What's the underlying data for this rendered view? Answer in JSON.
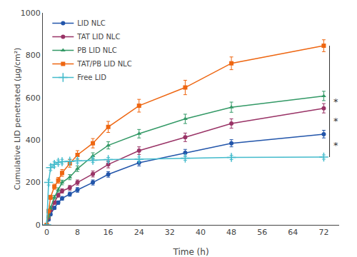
{
  "chart_data": {
    "type": "line",
    "x": [
      0,
      0.5,
      1,
      2,
      3,
      4,
      6,
      8,
      12,
      16,
      24,
      36,
      48,
      72
    ],
    "series": [
      {
        "name": "LID NLC",
        "color": "#2255aa",
        "marker": "circle",
        "line_style": "solid",
        "values": [
          0,
          25,
          50,
          80,
          105,
          125,
          145,
          165,
          200,
          238,
          293,
          340,
          385,
          428
        ],
        "errors": [
          0,
          5,
          6,
          7,
          8,
          9,
          10,
          11,
          12,
          13,
          15,
          16,
          17,
          18
        ]
      },
      {
        "name": "TAT LID NLC",
        "color": "#993366",
        "marker": "circle",
        "line_style": "solid",
        "values": [
          0,
          35,
          70,
          105,
          140,
          160,
          175,
          200,
          240,
          285,
          350,
          413,
          478,
          550
        ],
        "errors": [
          0,
          6,
          7,
          8,
          9,
          10,
          11,
          12,
          14,
          16,
          18,
          20,
          22,
          22
        ]
      },
      {
        "name": "PB LID NLC",
        "color": "#339966",
        "marker": "triangle",
        "line_style": "solid",
        "values": [
          0,
          40,
          80,
          130,
          165,
          200,
          225,
          265,
          325,
          375,
          430,
          500,
          555,
          608
        ],
        "errors": [
          0,
          6,
          8,
          9,
          10,
          11,
          12,
          13,
          15,
          17,
          20,
          22,
          24,
          22
        ]
      },
      {
        "name": "TAT/PB LID NLC",
        "color": "#ee6611",
        "marker": "square",
        "line_style": "solid",
        "values": [
          0,
          65,
          130,
          180,
          210,
          245,
          290,
          330,
          385,
          462,
          562,
          648,
          762,
          845
        ],
        "errors": [
          0,
          8,
          10,
          12,
          14,
          16,
          18,
          20,
          22,
          26,
          30,
          34,
          30,
          28
        ]
      },
      {
        "name": "Free LID",
        "color": "#44bbcc",
        "marker": "plus",
        "line_style": "solid",
        "values": [
          0,
          200,
          270,
          285,
          295,
          298,
          300,
          302,
          305,
          308,
          310,
          315,
          318,
          320
        ],
        "errors": [
          0,
          12,
          12,
          12,
          11,
          11,
          10,
          10,
          10,
          10,
          10,
          10,
          10,
          10
        ]
      }
    ],
    "xlabel": "Time (h)",
    "ylabel": "Cumulative LID penetrated (μg/cm²)",
    "xlim": [
      -1,
      76
    ],
    "ylim": [
      0,
      1000
    ],
    "xticks": [
      0,
      8,
      16,
      24,
      32,
      40,
      48,
      56,
      64,
      72
    ],
    "yticks": [
      0,
      200,
      400,
      600,
      800,
      1000
    ],
    "grid": false,
    "legend": "upper left",
    "annotations": [
      {
        "text": "*",
        "x": 73.5,
        "y_top": 845,
        "y_bot": 320,
        "y": 582.5
      },
      {
        "text": "*",
        "x": 73.5,
        "y_top": 550,
        "y_bot": 428,
        "y": 489
      },
      {
        "text": "*",
        "x": 73.5,
        "y_top": 428,
        "y_bot": 320,
        "y": 374
      }
    ]
  }
}
